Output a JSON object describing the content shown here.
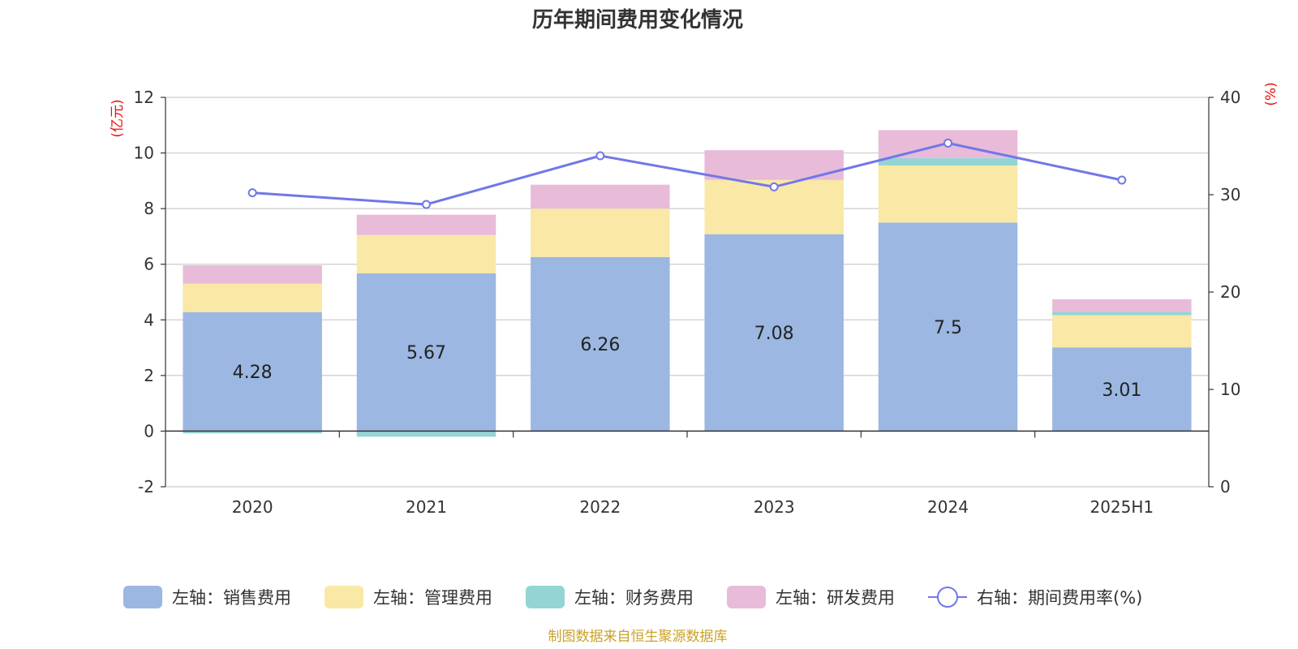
{
  "chart_data": {
    "type": "bar",
    "stacked": true,
    "title": "历年期间费用变化情况",
    "categories": [
      "2020",
      "2021",
      "2022",
      "2023",
      "2024",
      "2025H1"
    ],
    "y_left": {
      "unit": "(亿元)",
      "min": -2,
      "max": 12,
      "ticks": [
        -2,
        0,
        2,
        4,
        6,
        8,
        10,
        12
      ]
    },
    "y_right": {
      "unit": "(%)",
      "min": 0,
      "max": 40,
      "ticks": [
        0,
        10,
        20,
        30,
        40
      ]
    },
    "grid": true,
    "legend_position": "bottom",
    "series": [
      {
        "name": "左轴：销售费用",
        "type": "bar",
        "axis": "left",
        "color": "#9bb7e2",
        "values": [
          4.28,
          5.67,
          6.26,
          7.08,
          7.5,
          3.01
        ],
        "labels": [
          "4.28",
          "5.67",
          "6.26",
          "7.08",
          "7.5",
          "3.01"
        ]
      },
      {
        "name": "左轴：管理费用",
        "type": "bar",
        "axis": "left",
        "color": "#f9e8a6",
        "values": [
          1.02,
          1.38,
          1.74,
          1.95,
          2.05,
          1.16
        ]
      },
      {
        "name": "左轴：财务费用",
        "type": "bar",
        "axis": "left",
        "color": "#95d4d4",
        "values": [
          -0.08,
          -0.2,
          0.0,
          0.0,
          0.27,
          0.12
        ]
      },
      {
        "name": "左轴：研发费用",
        "type": "bar",
        "axis": "left",
        "color": "#e8bbd9",
        "values": [
          0.66,
          0.73,
          0.86,
          1.07,
          1.0,
          0.45
        ]
      },
      {
        "name": "右轴：期间费用率(%)",
        "type": "line",
        "axis": "right",
        "color": "#7177e8",
        "values": [
          30.2,
          29.0,
          34.0,
          30.8,
          35.3,
          31.5
        ]
      }
    ],
    "source": "制图数据来自恒生聚源数据库"
  }
}
